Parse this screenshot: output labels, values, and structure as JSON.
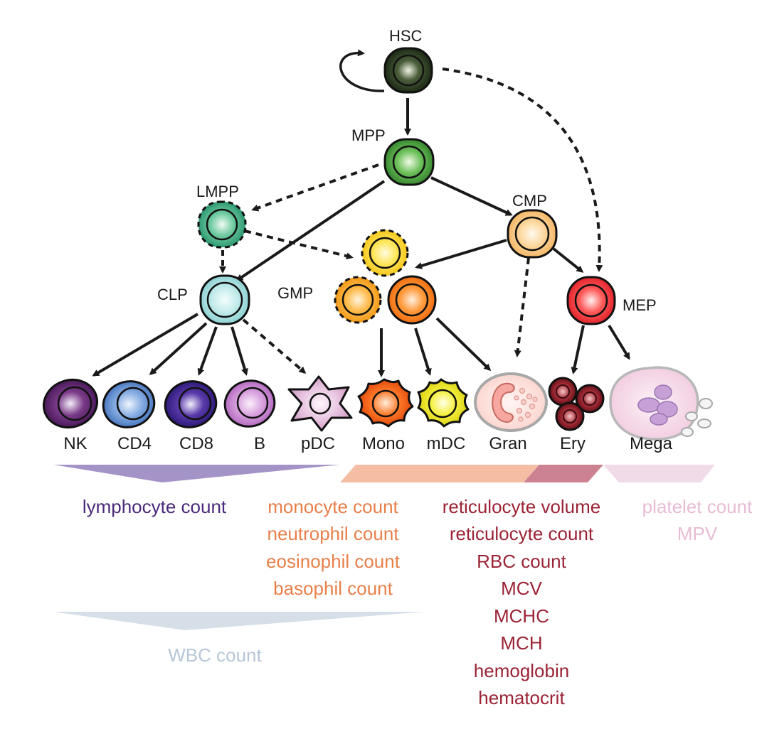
{
  "colors": {
    "lymphoid": "#4a2a7a",
    "myeloid": "#e8804a",
    "erythroid": "#9b2335",
    "platelet": "#e8bcd4",
    "wbc": "#b8c6d8"
  },
  "nodes": {
    "hsc": "HSC",
    "mpp": "MPP",
    "lmpp": "LMPP",
    "cmp": "CMP",
    "clp": "CLP",
    "gmp": "GMP",
    "mep": "MEP"
  },
  "cells": {
    "nk": "NK",
    "cd4": "CD4",
    "cd8": "CD8",
    "b": "B",
    "pdc": "pDC",
    "mono": "Mono",
    "mdc": "mDC",
    "gran": "Gran",
    "ery": "Ery",
    "mega": "Mega"
  },
  "traits": {
    "lymphoid": [
      "lymphocyte count"
    ],
    "myeloid": [
      "monocyte count",
      "neutrophil count",
      "eosinophil count",
      "basophil count"
    ],
    "erythroid": [
      "reticulocyte volume",
      "reticulocyte count",
      "RBC count",
      "MCV",
      "MCHC",
      "MCH",
      "hemoglobin",
      "hematocrit"
    ],
    "platelet": [
      "platelet count",
      "MPV"
    ],
    "wbc": [
      "WBC count"
    ]
  }
}
